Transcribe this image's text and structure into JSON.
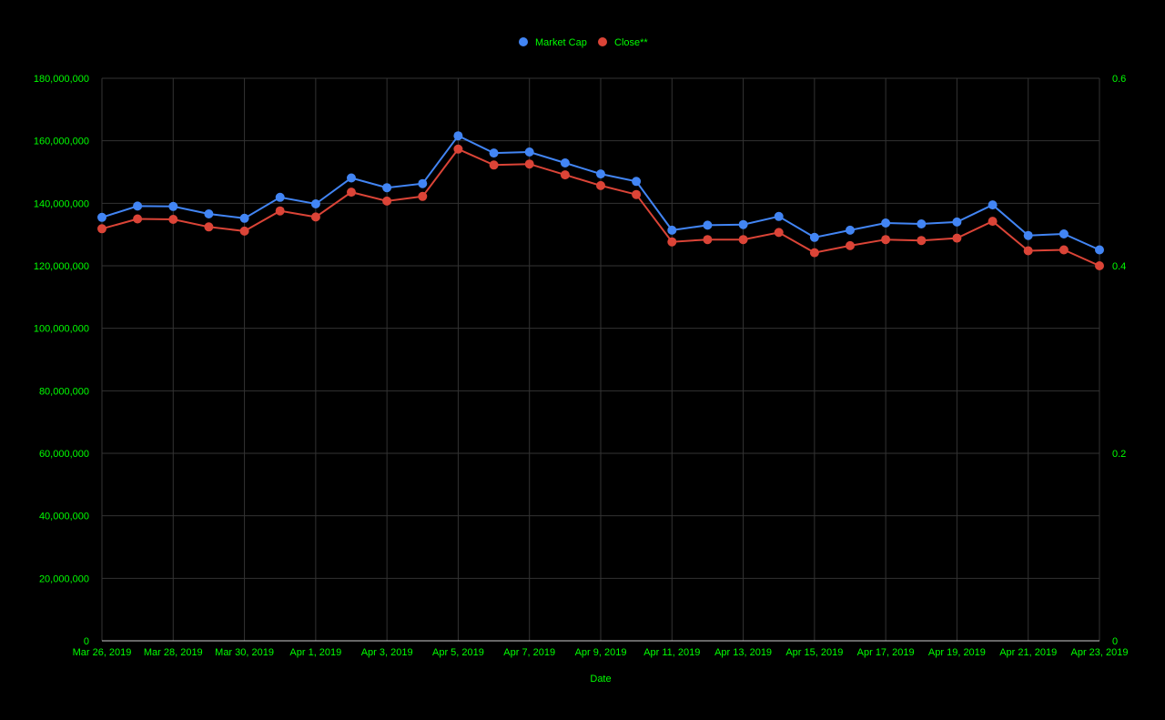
{
  "colors": {
    "background": "#000000",
    "text": "#00ff00",
    "grid": "#333333",
    "axis_line": "#cccccc"
  },
  "chart_data": {
    "type": "line",
    "title": "",
    "xlabel": "Date",
    "ylabel": "",
    "ylabel_right": "",
    "legend_position": "top-center",
    "grid": true,
    "x": [
      "Mar 26, 2019",
      "Mar 27, 2019",
      "Mar 28, 2019",
      "Mar 29, 2019",
      "Mar 30, 2019",
      "Mar 31, 2019",
      "Apr 1, 2019",
      "Apr 2, 2019",
      "Apr 3, 2019",
      "Apr 4, 2019",
      "Apr 5, 2019",
      "Apr 6, 2019",
      "Apr 7, 2019",
      "Apr 8, 2019",
      "Apr 9, 2019",
      "Apr 10, 2019",
      "Apr 11, 2019",
      "Apr 12, 2019",
      "Apr 13, 2019",
      "Apr 14, 2019",
      "Apr 15, 2019",
      "Apr 16, 2019",
      "Apr 17, 2019",
      "Apr 18, 2019",
      "Apr 19, 2019",
      "Apr 20, 2019",
      "Apr 21, 2019",
      "Apr 22, 2019",
      "Apr 23, 2019"
    ],
    "x_tick_labels": [
      "Mar 26, 2019",
      "Mar 28, 2019",
      "Mar 30, 2019",
      "Apr 1, 2019",
      "Apr 3, 2019",
      "Apr 5, 2019",
      "Apr 7, 2019",
      "Apr 9, 2019",
      "Apr 11, 2019",
      "Apr 13, 2019",
      "Apr 15, 2019",
      "Apr 17, 2019",
      "Apr 19, 2019",
      "Apr 21, 2019",
      "Apr 23, 2019"
    ],
    "y_left": {
      "range": [
        0,
        180000000
      ],
      "ticks": [
        0,
        20000000,
        40000000,
        60000000,
        80000000,
        100000000,
        120000000,
        140000000,
        160000000,
        180000000
      ],
      "tick_labels": [
        "0",
        "20,000,000",
        "40,000,000",
        "60,000,000",
        "80,000,000",
        "100,000,000",
        "120,000,000",
        "140,000,000",
        "160,000,000",
        "180,000,000"
      ]
    },
    "y_right": {
      "range": [
        0,
        0.6
      ],
      "ticks": [
        0,
        0.2,
        0.4,
        0.6
      ],
      "tick_labels": [
        "0",
        "0.2",
        "0.4",
        "0.6"
      ]
    },
    "series": [
      {
        "name": "Market Cap",
        "axis": "left",
        "color": "#4285f4",
        "values": [
          135500000,
          139100000,
          139000000,
          136600000,
          135200000,
          141900000,
          139800000,
          148100000,
          145000000,
          146300000,
          161600000,
          156100000,
          156400000,
          152900000,
          149400000,
          147000000,
          131400000,
          133000000,
          133200000,
          135800000,
          129100000,
          131400000,
          133700000,
          133400000,
          134000000,
          139500000,
          129700000,
          130200000,
          125100000
        ]
      },
      {
        "name": "Close**",
        "axis": "right",
        "color": "#db4437",
        "values": [
          0.4395,
          0.45,
          0.4495,
          0.4415,
          0.437,
          0.4585,
          0.452,
          0.4785,
          0.469,
          0.474,
          0.5245,
          0.5075,
          0.5085,
          0.497,
          0.4855,
          0.476,
          0.4255,
          0.428,
          0.428,
          0.4355,
          0.414,
          0.4215,
          0.428,
          0.427,
          0.4295,
          0.4475,
          0.416,
          0.417,
          0.4
        ]
      }
    ]
  }
}
